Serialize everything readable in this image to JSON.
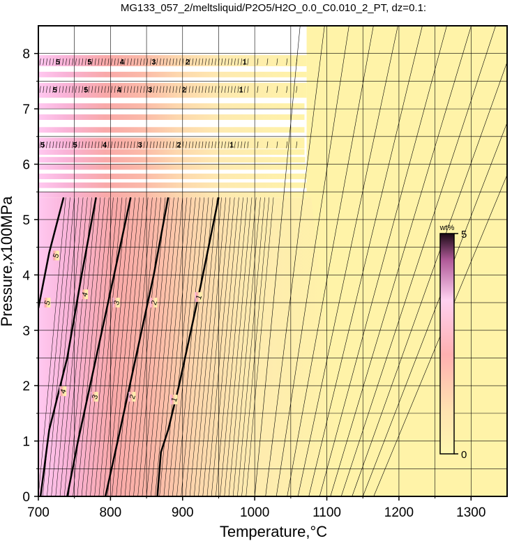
{
  "chart_data": {
    "type": "heatmap",
    "title": "MG133_057_2/meltsliquid/P2O5/H2O_0.0_C0.010_2_PT, dz=0.1:",
    "xlabel": "Temperature,°C",
    "ylabel": "Pressure,x100MPa",
    "xlim": [
      700,
      1350
    ],
    "ylim": [
      0,
      8.5
    ],
    "x_ticks": [
      "700",
      "800",
      "900",
      "1000",
      "1100",
      "1200",
      "1300"
    ],
    "y_ticks": [
      "0",
      "1",
      "2",
      "3",
      "4",
      "5",
      "6",
      "7",
      "8"
    ],
    "grid": true,
    "colorbar": {
      "label": "wt%",
      "min_label": "0",
      "max_label": "5",
      "range": [
        0,
        5
      ],
      "colors": [
        "#fff3a8",
        "#ffd9b0",
        "#ffa8a8",
        "#ffc0e8",
        "#8a2a70",
        "#1a0a15"
      ]
    },
    "colors": {
      "saturated_region": "#fff3a8",
      "contour_line": "#000000"
    },
    "data_region_max_pressure": 5.4,
    "striped_region_pressure_range": [
      5.4,
      8.4
    ],
    "saturation_boundary": {
      "temperature": [
        1072,
        1072,
        1090,
        1105,
        1120
      ],
      "pressure": [
        8.5,
        6.2,
        4.0,
        2.0,
        0.0
      ]
    },
    "contours": [
      {
        "level": "1",
        "major": true,
        "temperature": [
          865,
          870,
          880,
          895,
          925,
          950
        ],
        "pressure": [
          0,
          0.8,
          1.2,
          2.0,
          3.8,
          5.4
        ],
        "labels": [
          {
            "text": "1",
            "t": 888,
            "p": 1.75
          },
          {
            "text": "1",
            "t": 922,
            "p": 3.6
          }
        ]
      },
      {
        "level": "2",
        "major": true,
        "temperature": [
          793,
          810,
          835,
          860,
          880
        ],
        "pressure": [
          0,
          1.0,
          2.5,
          4.0,
          5.4
        ],
        "labels": [
          {
            "text": "2",
            "t": 830,
            "p": 1.8
          },
          {
            "text": "2",
            "t": 860,
            "p": 3.5
          }
        ]
      },
      {
        "level": "3",
        "major": true,
        "temperature": [
          740,
          755,
          780,
          805,
          828
        ],
        "pressure": [
          0,
          1.0,
          2.5,
          4.0,
          5.4
        ],
        "labels": [
          {
            "text": "3",
            "t": 778,
            "p": 1.8
          },
          {
            "text": "3",
            "t": 808,
            "p": 3.5
          }
        ]
      },
      {
        "level": "4",
        "major": true,
        "temperature": [
          703,
          715,
          740,
          760,
          780
        ],
        "pressure": [
          0,
          1.2,
          2.5,
          4.0,
          5.4
        ],
        "labels": [
          {
            "text": "4",
            "t": 734,
            "p": 1.9
          },
          {
            "text": "4",
            "t": 764,
            "p": 3.65
          }
        ]
      },
      {
        "level": "5",
        "major": true,
        "temperature": [
          700,
          715,
          735
        ],
        "pressure": [
          3.4,
          4.4,
          5.4
        ],
        "labels": [
          {
            "text": "5",
            "t": 712,
            "p": 3.5
          },
          {
            "text": "5",
            "t": 724,
            "p": 4.35
          }
        ]
      }
    ],
    "stripe_labels": [
      {
        "text": "5",
        "t": 727,
        "p": 7.85
      },
      {
        "text": "5",
        "t": 771,
        "p": 7.85
      },
      {
        "text": "4",
        "t": 816,
        "p": 7.85
      },
      {
        "text": "3",
        "t": 860,
        "p": 7.85
      },
      {
        "text": "2",
        "t": 907,
        "p": 7.85
      },
      {
        "text": "1",
        "t": 986,
        "p": 7.85
      },
      {
        "text": "5",
        "t": 723,
        "p": 7.35
      },
      {
        "text": "5",
        "t": 766,
        "p": 7.35
      },
      {
        "text": "4",
        "t": 812,
        "p": 7.35
      },
      {
        "text": "3",
        "t": 855,
        "p": 7.35
      },
      {
        "text": "2",
        "t": 902,
        "p": 7.35
      },
      {
        "text": "1",
        "t": 981,
        "p": 7.35
      },
      {
        "text": "5",
        "t": 706,
        "p": 6.35
      },
      {
        "text": "5",
        "t": 751,
        "p": 6.35
      },
      {
        "text": "4",
        "t": 792,
        "p": 6.35
      },
      {
        "text": "3",
        "t": 841,
        "p": 6.35
      },
      {
        "text": "2",
        "t": 895,
        "p": 6.35
      },
      {
        "text": "1",
        "t": 968,
        "p": 6.35
      }
    ]
  }
}
